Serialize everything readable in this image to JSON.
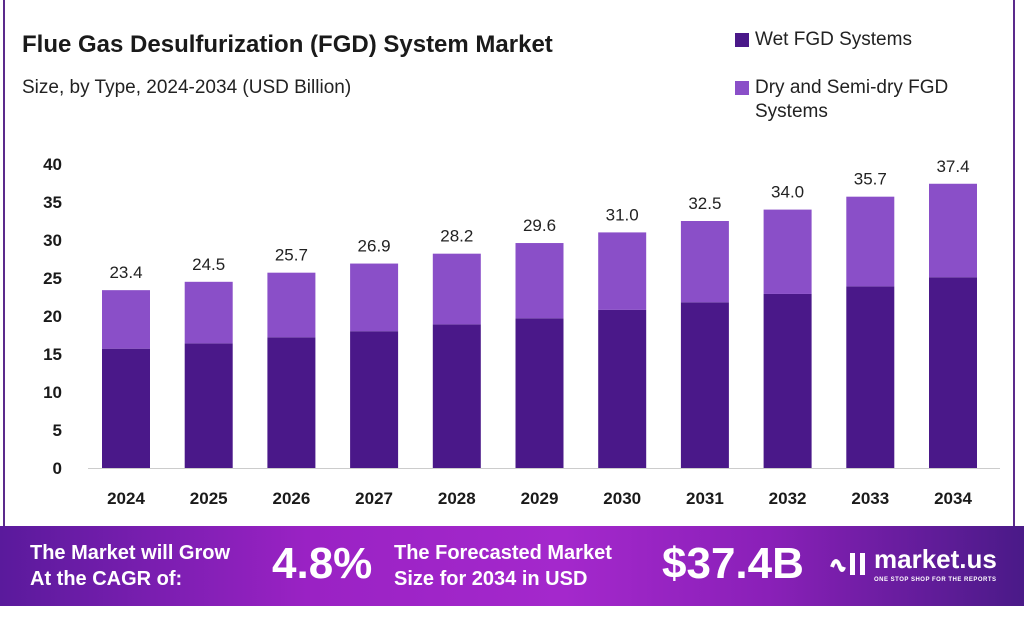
{
  "chart_data": {
    "type": "bar",
    "stacked": true,
    "title": "Flue Gas Desulfurization (FGD) System Market",
    "subtitle": "Size, by Type, 2024-2034 (USD Billion)",
    "categories": [
      "2024",
      "2025",
      "2026",
      "2027",
      "2028",
      "2029",
      "2030",
      "2031",
      "2032",
      "2033",
      "2034"
    ],
    "series": [
      {
        "name": "Wet FGD Systems",
        "color": "#4a1889",
        "values": [
          15.7,
          16.4,
          17.2,
          18.0,
          18.9,
          19.7,
          20.8,
          21.8,
          22.9,
          23.9,
          25.1
        ]
      },
      {
        "name": "Dry and Semi-dry FGD Systems",
        "color": "#8a4fc8",
        "values": [
          7.7,
          8.1,
          8.5,
          8.9,
          9.3,
          9.9,
          10.2,
          10.7,
          11.1,
          11.8,
          12.3
        ]
      }
    ],
    "totals": [
      "23.4",
      "24.5",
      "25.7",
      "26.9",
      "28.2",
      "29.6",
      "31.0",
      "32.5",
      "34.0",
      "35.7",
      "37.4"
    ],
    "yticks": [
      0,
      5,
      10,
      15,
      20,
      25,
      30,
      35,
      40
    ],
    "ylim": [
      0,
      40
    ],
    "grid": false,
    "legend": "top-right"
  },
  "legend": {
    "line1": "Wet FGD Systems",
    "line2a": "Dry and Semi-dry FGD",
    "line2b": "Systems"
  },
  "banner": {
    "cagr_label_1": "The Market will Grow",
    "cagr_label_2": "At the CAGR of:",
    "cagr_value": "4.8%",
    "forecast_label_1": "The Forecasted Market",
    "forecast_label_2": "Size for 2034 in USD",
    "forecast_value": "$37.4B",
    "logo_text": "market.us",
    "logo_tagline": "ONE STOP SHOP FOR THE REPORTS"
  }
}
